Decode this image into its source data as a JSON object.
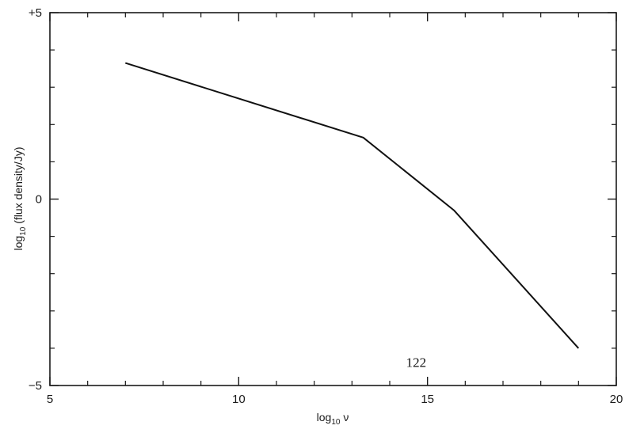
{
  "chart_data": {
    "type": "line",
    "xlabel_base": "log",
    "xlabel_sub": "10",
    "xlabel_sym": " ν",
    "ylabel_base": "log",
    "ylabel_sub": "10",
    "ylabel_rest": " (flux density/Jy)",
    "xlim": [
      5,
      20
    ],
    "ylim": [
      -5,
      5
    ],
    "x_ticks": [
      5,
      10,
      15,
      20
    ],
    "x_tick_labels": [
      "5",
      "10",
      "15",
      "20"
    ],
    "y_ticks": [
      5,
      0,
      -5
    ],
    "y_tick_labels": [
      "+5",
      "0",
      "−5"
    ],
    "x_minor_step": 1,
    "y_minor_step": 1,
    "grid": false,
    "series": [
      {
        "x": [
          7.0,
          13.3,
          15.7,
          19.0
        ],
        "y": [
          3.65,
          1.65,
          -0.3,
          -4.0
        ]
      }
    ],
    "annotation": "122",
    "annotation_x": 14.7,
    "annotation_y": -4.5
  }
}
